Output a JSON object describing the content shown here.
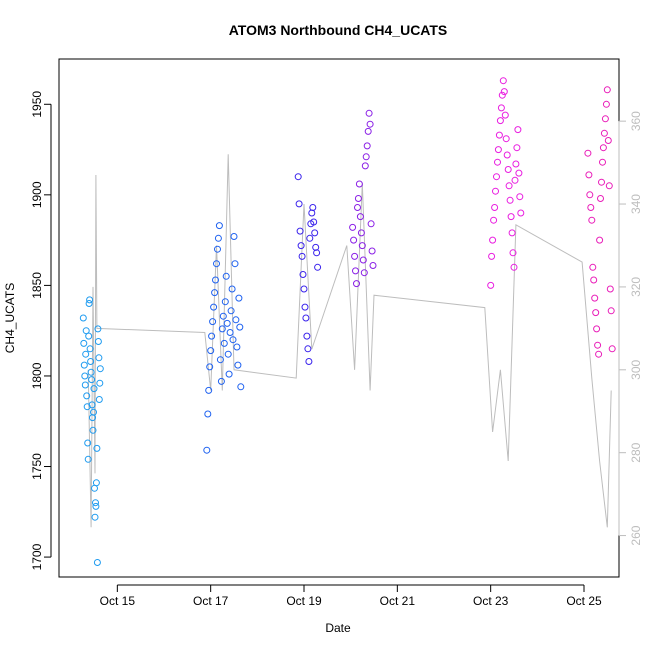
{
  "chart_data": {
    "type": "scatter",
    "title": "ATOM3 Northbound CH4_UCATS",
    "xlabel": "Date",
    "ylabel": "CH4_UCATS",
    "x_ticks": [
      "Oct 15",
      "Oct 17",
      "Oct 19",
      "Oct 21",
      "Oct 23",
      "Oct 25"
    ],
    "xlim": [
      "2017-10-14 06:00",
      "2017-10-26 06:00"
    ],
    "ylim": [
      1689,
      1975
    ],
    "y_ticks": [
      1700,
      1750,
      1800,
      1850,
      1900,
      1950
    ],
    "y2lim": [
      250,
      375
    ],
    "y2_ticks": [
      260,
      280,
      300,
      320,
      340,
      360
    ],
    "grid": false,
    "colors": {
      "seg1": "#1e9bf0",
      "seg2": "#1f62f0",
      "seg3": "#3a23ec",
      "seg4": "#8a1fe6",
      "seg5": "#e91ee0",
      "seg6": "#e91eb9",
      "line_series": "#bdbdbd"
    },
    "series": [
      {
        "points": [
          {
            "x": "2017-10-14 18:30",
            "y": 1832
          },
          {
            "x": "2017-10-14 18:45",
            "y": 1818
          },
          {
            "x": "2017-10-14 19:00",
            "y": 1806
          },
          {
            "x": "2017-10-14 19:15",
            "y": 1800
          },
          {
            "x": "2017-10-14 19:30",
            "y": 1795
          },
          {
            "x": "2017-10-14 19:45",
            "y": 1812
          },
          {
            "x": "2017-10-14 20:00",
            "y": 1825
          },
          {
            "x": "2017-10-14 20:15",
            "y": 1789
          },
          {
            "x": "2017-10-14 20:30",
            "y": 1783
          },
          {
            "x": "2017-10-14 20:45",
            "y": 1763
          },
          {
            "x": "2017-10-14 21:00",
            "y": 1754
          },
          {
            "x": "2017-10-14 21:15",
            "y": 1822
          },
          {
            "x": "2017-10-14 21:30",
            "y": 1840
          },
          {
            "x": "2017-10-14 21:45",
            "y": 1842
          },
          {
            "x": "2017-10-14 22:00",
            "y": 1815
          },
          {
            "x": "2017-10-14 22:15",
            "y": 1808
          },
          {
            "x": "2017-10-14 22:30",
            "y": 1802
          },
          {
            "x": "2017-10-14 22:45",
            "y": 1798
          },
          {
            "x": "2017-10-14 23:00",
            "y": 1784
          },
          {
            "x": "2017-10-14 23:15",
            "y": 1777
          },
          {
            "x": "2017-10-14 23:30",
            "y": 1770
          },
          {
            "x": "2017-10-14 23:45",
            "y": 1780
          },
          {
            "x": "2017-10-15 00:00",
            "y": 1793
          },
          {
            "x": "2017-10-15 00:15",
            "y": 1738
          },
          {
            "x": "2017-10-15 00:30",
            "y": 1722
          },
          {
            "x": "2017-10-15 00:45",
            "y": 1730
          },
          {
            "x": "2017-10-15 01:00",
            "y": 1728
          },
          {
            "x": "2017-10-15 01:15",
            "y": 1741
          },
          {
            "x": "2017-10-15 01:30",
            "y": 1760
          },
          {
            "x": "2017-10-15 01:45",
            "y": 1697
          },
          {
            "x": "2017-10-15 02:00",
            "y": 1826
          },
          {
            "x": "2017-10-15 02:15",
            "y": 1819
          },
          {
            "x": "2017-10-15 02:30",
            "y": 1810
          },
          {
            "x": "2017-10-15 02:45",
            "y": 1787
          },
          {
            "x": "2017-10-15 03:00",
            "y": 1796
          },
          {
            "x": "2017-10-15 03:15",
            "y": 1804
          }
        ]
      },
      {
        "points": [
          {
            "x": "2017-10-17 10:00",
            "y": 1759
          },
          {
            "x": "2017-10-17 10:30",
            "y": 1779
          },
          {
            "x": "2017-10-17 11:00",
            "y": 1792
          },
          {
            "x": "2017-10-17 11:30",
            "y": 1805
          },
          {
            "x": "2017-10-17 12:00",
            "y": 1814
          },
          {
            "x": "2017-10-17 12:30",
            "y": 1822
          },
          {
            "x": "2017-10-17 13:00",
            "y": 1830
          },
          {
            "x": "2017-10-17 13:30",
            "y": 1838
          },
          {
            "x": "2017-10-17 14:00",
            "y": 1846
          },
          {
            "x": "2017-10-17 14:30",
            "y": 1853
          },
          {
            "x": "2017-10-17 15:00",
            "y": 1862
          },
          {
            "x": "2017-10-17 15:30",
            "y": 1870
          },
          {
            "x": "2017-10-17 16:00",
            "y": 1876
          },
          {
            "x": "2017-10-17 16:30",
            "y": 1883
          },
          {
            "x": "2017-10-17 17:00",
            "y": 1809
          },
          {
            "x": "2017-10-17 17:30",
            "y": 1797
          },
          {
            "x": "2017-10-17 18:00",
            "y": 1826
          },
          {
            "x": "2017-10-17 18:30",
            "y": 1833
          },
          {
            "x": "2017-10-17 19:00",
            "y": 1818
          },
          {
            "x": "2017-10-17 19:30",
            "y": 1841
          },
          {
            "x": "2017-10-17 20:00",
            "y": 1855
          },
          {
            "x": "2017-10-17 20:30",
            "y": 1829
          },
          {
            "x": "2017-10-17 21:00",
            "y": 1812
          },
          {
            "x": "2017-10-17 21:30",
            "y": 1801
          },
          {
            "x": "2017-10-17 22:00",
            "y": 1824
          },
          {
            "x": "2017-10-17 22:30",
            "y": 1836
          },
          {
            "x": "2017-10-17 23:00",
            "y": 1848
          },
          {
            "x": "2017-10-17 23:30",
            "y": 1820
          },
          {
            "x": "2017-10-18 00:00",
            "y": 1877
          },
          {
            "x": "2017-10-18 00:30",
            "y": 1862
          },
          {
            "x": "2017-10-18 01:00",
            "y": 1831
          },
          {
            "x": "2017-10-18 01:30",
            "y": 1816
          },
          {
            "x": "2017-10-18 02:00",
            "y": 1806
          },
          {
            "x": "2017-10-18 02:30",
            "y": 1843
          },
          {
            "x": "2017-10-18 03:00",
            "y": 1827
          },
          {
            "x": "2017-10-18 03:30",
            "y": 1794
          }
        ]
      },
      {
        "points": [
          {
            "x": "2017-10-19 09:00",
            "y": 1910
          },
          {
            "x": "2017-10-19 09:30",
            "y": 1895
          },
          {
            "x": "2017-10-19 10:00",
            "y": 1880
          },
          {
            "x": "2017-10-19 10:30",
            "y": 1872
          },
          {
            "x": "2017-10-19 11:00",
            "y": 1866
          },
          {
            "x": "2017-10-19 11:30",
            "y": 1856
          },
          {
            "x": "2017-10-19 12:00",
            "y": 1848
          },
          {
            "x": "2017-10-19 12:30",
            "y": 1838
          },
          {
            "x": "2017-10-19 13:00",
            "y": 1832
          },
          {
            "x": "2017-10-19 13:30",
            "y": 1822
          },
          {
            "x": "2017-10-19 14:00",
            "y": 1815
          },
          {
            "x": "2017-10-19 14:30",
            "y": 1808
          },
          {
            "x": "2017-10-19 15:00",
            "y": 1876
          },
          {
            "x": "2017-10-19 15:30",
            "y": 1884
          },
          {
            "x": "2017-10-19 16:00",
            "y": 1890
          },
          {
            "x": "2017-10-19 16:30",
            "y": 1893
          },
          {
            "x": "2017-10-19 17:00",
            "y": 1885
          },
          {
            "x": "2017-10-19 17:30",
            "y": 1879
          },
          {
            "x": "2017-10-19 18:00",
            "y": 1871
          },
          {
            "x": "2017-10-19 18:30",
            "y": 1868
          },
          {
            "x": "2017-10-19 19:00",
            "y": 1860
          }
        ]
      },
      {
        "points": [
          {
            "x": "2017-10-20 13:00",
            "y": 1882
          },
          {
            "x": "2017-10-20 13:30",
            "y": 1875
          },
          {
            "x": "2017-10-20 14:00",
            "y": 1866
          },
          {
            "x": "2017-10-20 14:30",
            "y": 1858
          },
          {
            "x": "2017-10-20 15:00",
            "y": 1851
          },
          {
            "x": "2017-10-20 15:30",
            "y": 1893
          },
          {
            "x": "2017-10-20 16:00",
            "y": 1898
          },
          {
            "x": "2017-10-20 16:30",
            "y": 1906
          },
          {
            "x": "2017-10-20 17:00",
            "y": 1888
          },
          {
            "x": "2017-10-20 17:30",
            "y": 1879
          },
          {
            "x": "2017-10-20 18:00",
            "y": 1872
          },
          {
            "x": "2017-10-20 18:30",
            "y": 1864
          },
          {
            "x": "2017-10-20 19:00",
            "y": 1857
          },
          {
            "x": "2017-10-20 19:30",
            "y": 1916
          },
          {
            "x": "2017-10-20 20:00",
            "y": 1921
          },
          {
            "x": "2017-10-20 20:30",
            "y": 1927
          },
          {
            "x": "2017-10-20 21:00",
            "y": 1935
          },
          {
            "x": "2017-10-20 21:30",
            "y": 1945
          },
          {
            "x": "2017-10-20 22:00",
            "y": 1939
          },
          {
            "x": "2017-10-20 22:30",
            "y": 1884
          },
          {
            "x": "2017-10-20 23:00",
            "y": 1869
          },
          {
            "x": "2017-10-20 23:30",
            "y": 1861
          }
        ]
      },
      {
        "points": [
          {
            "x": "2017-10-23 12:00",
            "y": 1850
          },
          {
            "x": "2017-10-23 12:30",
            "y": 1866
          },
          {
            "x": "2017-10-23 13:00",
            "y": 1875
          },
          {
            "x": "2017-10-23 13:30",
            "y": 1886
          },
          {
            "x": "2017-10-23 14:00",
            "y": 1893
          },
          {
            "x": "2017-10-23 14:30",
            "y": 1902
          },
          {
            "x": "2017-10-23 15:00",
            "y": 1910
          },
          {
            "x": "2017-10-23 15:30",
            "y": 1918
          },
          {
            "x": "2017-10-23 16:00",
            "y": 1925
          },
          {
            "x": "2017-10-23 16:30",
            "y": 1933
          },
          {
            "x": "2017-10-23 17:00",
            "y": 1941
          },
          {
            "x": "2017-10-23 17:30",
            "y": 1948
          },
          {
            "x": "2017-10-23 18:00",
            "y": 1955
          },
          {
            "x": "2017-10-23 18:30",
            "y": 1963
          },
          {
            "x": "2017-10-23 19:00",
            "y": 1957
          },
          {
            "x": "2017-10-23 19:30",
            "y": 1944
          },
          {
            "x": "2017-10-23 20:00",
            "y": 1931
          },
          {
            "x": "2017-10-23 20:30",
            "y": 1922
          },
          {
            "x": "2017-10-23 21:00",
            "y": 1914
          },
          {
            "x": "2017-10-23 21:30",
            "y": 1905
          },
          {
            "x": "2017-10-23 22:00",
            "y": 1897
          },
          {
            "x": "2017-10-23 22:30",
            "y": 1888
          },
          {
            "x": "2017-10-23 23:00",
            "y": 1879
          },
          {
            "x": "2017-10-23 23:30",
            "y": 1868
          },
          {
            "x": "2017-10-24 00:00",
            "y": 1860
          },
          {
            "x": "2017-10-24 00:30",
            "y": 1908
          },
          {
            "x": "2017-10-24 01:00",
            "y": 1917
          },
          {
            "x": "2017-10-24 01:30",
            "y": 1926
          },
          {
            "x": "2017-10-24 02:00",
            "y": 1936
          },
          {
            "x": "2017-10-24 02:30",
            "y": 1912
          },
          {
            "x": "2017-10-24 03:00",
            "y": 1899
          },
          {
            "x": "2017-10-24 03:30",
            "y": 1890
          }
        ]
      },
      {
        "points": [
          {
            "x": "2017-10-25 14:00",
            "y": 1923
          },
          {
            "x": "2017-10-25 14:30",
            "y": 1911
          },
          {
            "x": "2017-10-25 15:00",
            "y": 1900
          },
          {
            "x": "2017-10-25 15:30",
            "y": 1893
          },
          {
            "x": "2017-10-25 16:00",
            "y": 1886
          },
          {
            "x": "2017-10-25 16:30",
            "y": 1860
          },
          {
            "x": "2017-10-25 17:00",
            "y": 1853
          },
          {
            "x": "2017-10-25 17:30",
            "y": 1843
          },
          {
            "x": "2017-10-25 18:00",
            "y": 1835
          },
          {
            "x": "2017-10-25 18:30",
            "y": 1826
          },
          {
            "x": "2017-10-25 19:00",
            "y": 1817
          },
          {
            "x": "2017-10-25 19:30",
            "y": 1812
          },
          {
            "x": "2017-10-25 20:00",
            "y": 1875
          },
          {
            "x": "2017-10-25 20:30",
            "y": 1898
          },
          {
            "x": "2017-10-25 21:00",
            "y": 1907
          },
          {
            "x": "2017-10-25 21:30",
            "y": 1918
          },
          {
            "x": "2017-10-25 22:00",
            "y": 1926
          },
          {
            "x": "2017-10-25 22:30",
            "y": 1934
          },
          {
            "x": "2017-10-25 23:00",
            "y": 1942
          },
          {
            "x": "2017-10-25 23:30",
            "y": 1950
          },
          {
            "x": "2017-10-26 00:00",
            "y": 1958
          },
          {
            "x": "2017-10-26 00:30",
            "y": 1930
          },
          {
            "x": "2017-10-26 01:00",
            "y": 1905
          },
          {
            "x": "2017-10-26 01:30",
            "y": 1848
          },
          {
            "x": "2017-10-26 02:00",
            "y": 1836
          },
          {
            "x": "2017-10-26 02:30",
            "y": 1815
          }
        ]
      },
      {
        "axis": "right",
        "points": [
          {
            "x": "2017-10-14 21:00",
            "y": 300
          },
          {
            "x": "2017-10-14 22:30",
            "y": 262
          },
          {
            "x": "2017-10-14 23:30",
            "y": 320
          },
          {
            "x": "2017-10-15 00:30",
            "y": 275
          },
          {
            "x": "2017-10-15 01:00",
            "y": 347
          },
          {
            "x": "2017-10-15 01:30",
            "y": 310
          },
          {
            "x": "2017-10-17 09:00",
            "y": 309
          },
          {
            "x": "2017-10-17 12:00",
            "y": 295
          },
          {
            "x": "2017-10-17 15:00",
            "y": 330
          },
          {
            "x": "2017-10-17 18:00",
            "y": 295
          },
          {
            "x": "2017-10-17 21:00",
            "y": 352
          },
          {
            "x": "2017-10-18 00:00",
            "y": 300
          },
          {
            "x": "2017-10-19 08:00",
            "y": 298
          },
          {
            "x": "2017-10-19 12:00",
            "y": 340
          },
          {
            "x": "2017-10-19 16:00",
            "y": 305
          },
          {
            "x": "2017-10-20 10:00",
            "y": 330
          },
          {
            "x": "2017-10-20 14:00",
            "y": 300
          },
          {
            "x": "2017-10-20 18:00",
            "y": 345
          },
          {
            "x": "2017-10-20 22:00",
            "y": 295
          },
          {
            "x": "2017-10-21 00:00",
            "y": 318
          },
          {
            "x": "2017-10-23 09:00",
            "y": 315
          },
          {
            "x": "2017-10-23 13:00",
            "y": 285
          },
          {
            "x": "2017-10-23 17:00",
            "y": 300
          },
          {
            "x": "2017-10-23 21:00",
            "y": 278
          },
          {
            "x": "2017-10-24 01:00",
            "y": 335
          },
          {
            "x": "2017-10-25 11:00",
            "y": 326
          },
          {
            "x": "2017-10-25 16:00",
            "y": 298
          },
          {
            "x": "2017-10-25 20:00",
            "y": 278
          },
          {
            "x": "2017-10-26 00:00",
            "y": 262
          },
          {
            "x": "2017-10-26 02:00",
            "y": 295
          }
        ]
      }
    ]
  }
}
